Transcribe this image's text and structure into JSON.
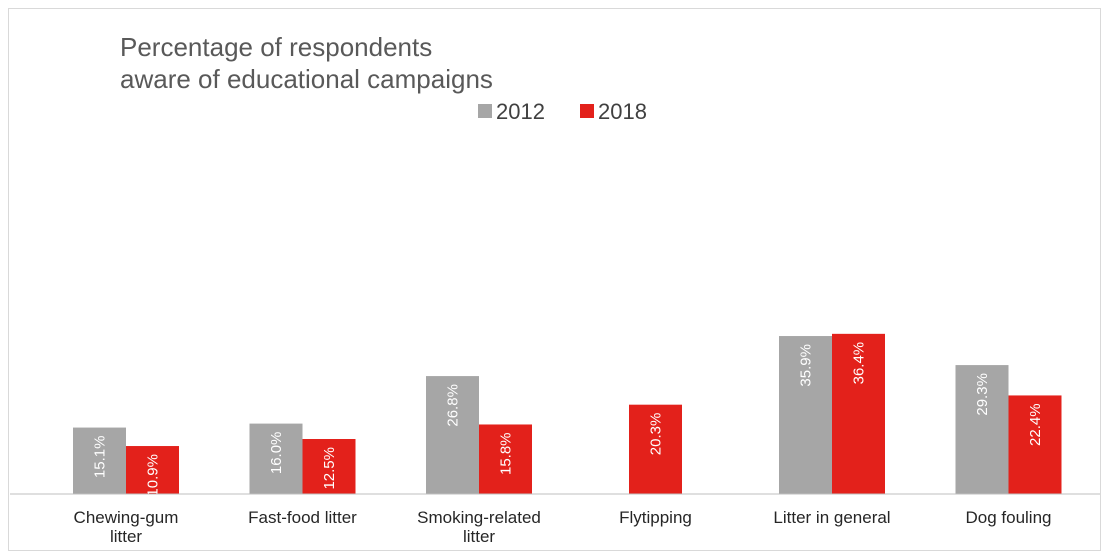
{
  "chart_data": {
    "type": "bar",
    "title_lines": [
      "Percentage of respondents",
      "aware of educational campaigns"
    ],
    "xlabel": "",
    "ylabel": "",
    "ylim": [
      0,
      45
    ],
    "grid": false,
    "legend_position": "top-center",
    "categories": [
      [
        "Chewing-gum",
        "litter"
      ],
      [
        "Fast-food litter"
      ],
      [
        "Smoking-related",
        "litter"
      ],
      [
        "Flytipping"
      ],
      [
        "Litter in general"
      ],
      [
        "Dog fouling"
      ]
    ],
    "series": [
      {
        "name": "2012",
        "color": "#a6a6a6",
        "values": [
          15.1,
          16.0,
          26.8,
          null,
          35.9,
          29.3
        ],
        "labels": [
          "15.1%",
          "16.0%",
          "26.8%",
          null,
          "35.9%",
          "29.3%"
        ]
      },
      {
        "name": "2018",
        "color": "#e3211b",
        "values": [
          10.9,
          12.5,
          15.8,
          20.3,
          36.4,
          22.4
        ],
        "labels": [
          "10.9%",
          "12.5%",
          "15.8%",
          "20.3%",
          "36.4%",
          "22.4%"
        ]
      }
    ],
    "axis_color": "#bfbfbf"
  }
}
